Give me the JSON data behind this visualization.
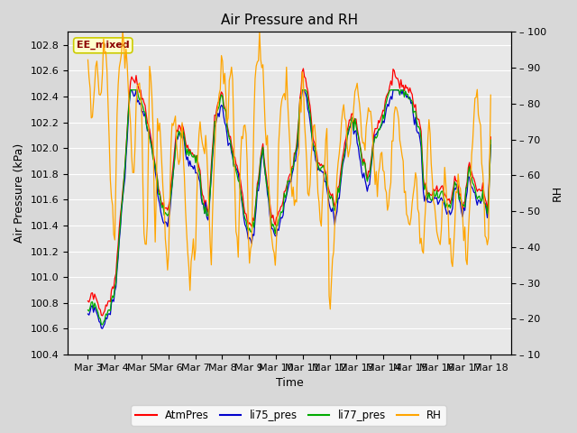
{
  "title": "Air Pressure and RH",
  "xlabel": "Time",
  "ylabel_left": "Air Pressure (kPa)",
  "ylabel_right": "RH",
  "ylim_left": [
    100.4,
    102.9
  ],
  "ylim_right": [
    10,
    100
  ],
  "yticks_left": [
    100.4,
    100.6,
    100.8,
    101.0,
    101.2,
    101.4,
    101.6,
    101.8,
    102.0,
    102.2,
    102.4,
    102.6,
    102.8
  ],
  "yticks_right": [
    10,
    20,
    30,
    40,
    50,
    60,
    70,
    80,
    90,
    100
  ],
  "xtick_labels": [
    "Mar 3",
    "Mar 4",
    "Mar 5",
    "Mar 6",
    "Mar 7",
    "Mar 8",
    "Mar 9",
    "Mar 10",
    "Mar 11",
    "Mar 12",
    "Mar 13",
    "Mar 14",
    "Mar 15",
    "Mar 16",
    "Mar 17",
    "Mar 18"
  ],
  "annotation_text": "EE_mixed",
  "annotation_color": "#8B0000",
  "annotation_bg": "#FFFFCC",
  "annotation_border": "#CCCC00",
  "colors": {
    "AtmPres": "#FF0000",
    "li75_pres": "#0000CC",
    "li77_pres": "#00AA00",
    "RH": "#FFA500"
  },
  "legend_labels": [
    "AtmPres",
    "li75_pres",
    "li77_pres",
    "RH"
  ],
  "bg_color": "#D8D8D8",
  "plot_bg_color": "#E8E8E8",
  "grid_color": "#FFFFFF",
  "title_fontsize": 11,
  "label_fontsize": 9,
  "tick_fontsize": 8
}
